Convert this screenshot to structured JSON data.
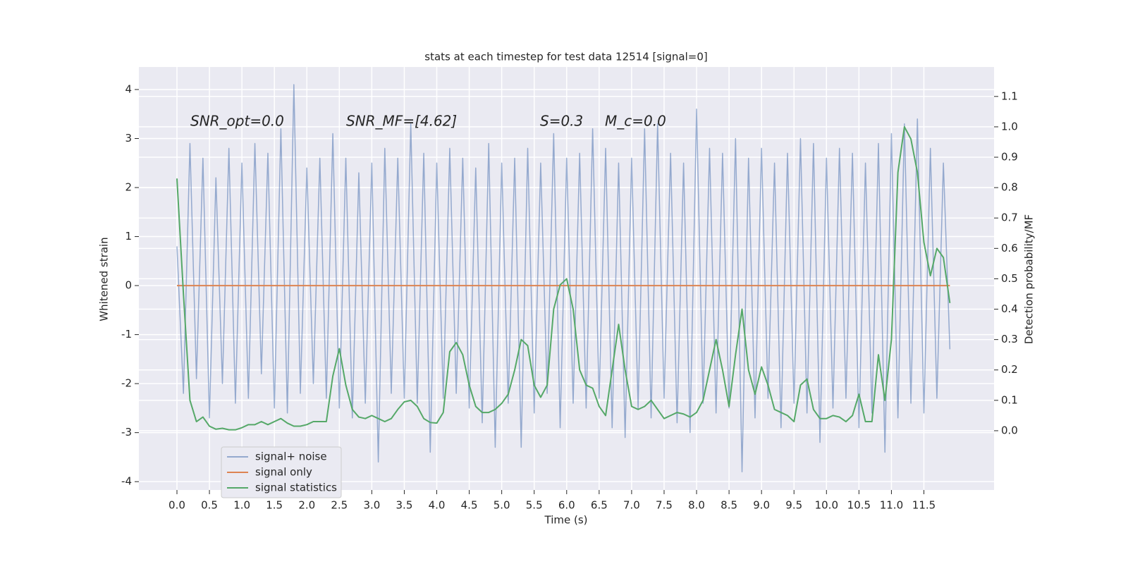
{
  "chart_data": {
    "type": "line",
    "title": "stats at each timestep for test data 12514 [signal=0]",
    "xlabel": "Time (s)",
    "ylabel": "Whitened strain",
    "y2label": "Detection probability/MF",
    "annotations": [
      "SNR_opt=0.0",
      "SNR_MF=[4.62]",
      "S=0.3",
      "M_c=0.0"
    ],
    "xlim": [
      -0.586,
      12.58
    ],
    "ylim": [
      -4.17,
      4.46
    ],
    "y2lim": [
      -0.195,
      1.197
    ],
    "xticks": [
      {
        "value": 0,
        "label": "0.0"
      },
      0.5,
      {
        "value": 1,
        "label": "1.0"
      },
      1.5,
      {
        "value": 2,
        "label": "2.0"
      },
      2.5,
      {
        "value": 3,
        "label": "3.0"
      },
      3.5,
      {
        "value": 4,
        "label": "4.0"
      },
      4.5,
      {
        "value": 5,
        "label": "5.0"
      },
      5.5,
      {
        "value": 6,
        "label": "6.0"
      },
      6.5,
      {
        "value": 7,
        "label": "7.0"
      },
      7.5,
      {
        "value": 8,
        "label": "8.0"
      },
      8.5,
      {
        "value": 9,
        "label": "9.0"
      },
      9.5,
      {
        "value": 10,
        "label": "10.0"
      },
      10.5,
      {
        "value": 11,
        "label": "11.0"
      },
      11.5
    ],
    "yticks": [
      -4,
      -3,
      -2,
      -1,
      0,
      1,
      2,
      3,
      4
    ],
    "y2ticks": [
      {
        "value": 0,
        "label": "0.0"
      },
      0.1,
      0.2,
      0.3,
      0.4,
      0.5,
      0.6,
      0.7,
      0.8,
      0.9,
      {
        "value": 1,
        "label": "1.0"
      },
      1.1
    ],
    "grid": true,
    "legend": "lower left",
    "x": [
      0,
      0.1,
      0.2,
      0.3,
      0.4,
      0.5,
      0.6,
      0.7,
      0.8,
      0.9,
      1,
      1.1,
      1.2,
      1.3,
      1.4,
      1.5,
      1.6,
      1.7,
      1.8,
      1.9,
      2,
      2.1,
      2.2,
      2.3,
      2.4,
      2.5,
      2.6,
      2.7,
      2.8,
      2.9,
      3,
      3.1,
      3.2,
      3.3,
      3.4,
      3.5,
      3.6,
      3.7,
      3.8,
      3.9,
      4,
      4.1,
      4.2,
      4.3,
      4.4,
      4.5,
      4.6,
      4.7,
      4.8,
      4.9,
      5,
      5.1,
      5.2,
      5.3,
      5.4,
      5.5,
      5.6,
      5.7,
      5.8,
      5.9,
      6,
      6.1,
      6.2,
      6.3,
      6.4,
      6.5,
      6.6,
      6.7,
      6.8,
      6.9,
      7,
      7.1,
      7.2,
      7.3,
      7.4,
      7.5,
      7.6,
      7.7,
      7.8,
      7.9,
      8,
      8.1,
      8.2,
      8.3,
      8.4,
      8.5,
      8.6,
      8.7,
      8.8,
      8.9,
      9,
      9.1,
      9.2,
      9.3,
      9.4,
      9.5,
      9.6,
      9.7,
      9.8,
      9.9,
      10,
      10.1,
      10.2,
      10.3,
      10.4,
      10.5,
      10.6,
      10.7,
      10.8,
      10.9,
      11,
      11.1,
      11.2,
      11.3,
      11.4,
      11.5,
      11.6,
      11.7,
      11.8,
      11.9
    ],
    "series": [
      {
        "name": "signal+ noise",
        "color": "#4c72b0",
        "values": [
          0.8,
          -2.2,
          2.9,
          -1.9,
          2.6,
          -2.7,
          2.2,
          -2.0,
          2.8,
          -2.4,
          2.5,
          -2.3,
          2.9,
          -1.8,
          2.7,
          -2.5,
          3.2,
          -2.6,
          4.1,
          -2.2,
          2.4,
          -2.0,
          2.6,
          -2.3,
          3.1,
          -2.5,
          2.6,
          -2.7,
          2.3,
          -2.4,
          2.5,
          -3.6,
          2.8,
          -2.2,
          2.6,
          -2.3,
          3.3,
          -2.4,
          2.7,
          -3.4,
          2.5,
          -2.3,
          2.8,
          -2.2,
          2.6,
          -2.5,
          2.4,
          -2.8,
          2.9,
          -3.3,
          2.5,
          -2.4,
          2.6,
          -3.3,
          2.8,
          -2.6,
          2.5,
          -2.2,
          3.1,
          -2.9,
          2.6,
          -2.4,
          2.7,
          -2.5,
          3.2,
          -2.3,
          2.8,
          -2.9,
          2.5,
          -3.1,
          2.6,
          -2.5,
          3.2,
          -2.7,
          3.3,
          -2.3,
          2.7,
          -2.8,
          2.5,
          -3.0,
          3.6,
          -2.4,
          2.8,
          -2.6,
          2.7,
          -2.5,
          3.0,
          -3.8,
          2.6,
          -2.7,
          2.8,
          -2.3,
          2.5,
          -2.9,
          2.7,
          -2.4,
          3.0,
          -2.6,
          2.9,
          -3.2,
          2.6,
          -2.5,
          2.8,
          -2.3,
          2.7,
          -2.9,
          2.5,
          -2.6,
          2.9,
          -3.4,
          3.1,
          -2.7,
          3.3,
          -2.4,
          3.4,
          -2.6,
          2.8,
          -2.3,
          2.5,
          -1.3
        ]
      },
      {
        "name": "signal only",
        "color": "#dd8452",
        "values": [
          0,
          0,
          0,
          0,
          0,
          0,
          0,
          0,
          0,
          0,
          0,
          0,
          0,
          0,
          0,
          0,
          0,
          0,
          0,
          0,
          0,
          0,
          0,
          0,
          0,
          0,
          0,
          0,
          0,
          0,
          0,
          0,
          0,
          0,
          0,
          0,
          0,
          0,
          0,
          0,
          0,
          0,
          0,
          0,
          0,
          0,
          0,
          0,
          0,
          0,
          0,
          0,
          0,
          0,
          0,
          0,
          0,
          0,
          0,
          0,
          0,
          0,
          0,
          0,
          0,
          0,
          0,
          0,
          0,
          0,
          0,
          0,
          0,
          0,
          0,
          0,
          0,
          0,
          0,
          0,
          0,
          0,
          0,
          0,
          0,
          0,
          0,
          0,
          0,
          0,
          0,
          0,
          0,
          0,
          0,
          0,
          0,
          0,
          0,
          0,
          0,
          0,
          0,
          0,
          0,
          0,
          0,
          0,
          0,
          0,
          0,
          0,
          0,
          0,
          0,
          0,
          0,
          0,
          0,
          0
        ]
      },
      {
        "name": "signal statistics",
        "color": "#55a868",
        "axis": "y2",
        "values": [
          0.83,
          0.45,
          0.1,
          0.03,
          0.045,
          0.015,
          0.005,
          0.008,
          0.003,
          0.003,
          0.01,
          0.02,
          0.02,
          0.03,
          0.02,
          0.03,
          0.04,
          0.025,
          0.015,
          0.015,
          0.02,
          0.03,
          0.03,
          0.03,
          0.18,
          0.27,
          0.15,
          0.07,
          0.045,
          0.04,
          0.05,
          0.04,
          0.03,
          0.04,
          0.07,
          0.095,
          0.1,
          0.08,
          0.04,
          0.027,
          0.025,
          0.06,
          0.26,
          0.29,
          0.25,
          0.15,
          0.08,
          0.06,
          0.06,
          0.07,
          0.09,
          0.12,
          0.2,
          0.3,
          0.28,
          0.15,
          0.11,
          0.15,
          0.4,
          0.48,
          0.5,
          0.4,
          0.2,
          0.15,
          0.14,
          0.08,
          0.05,
          0.2,
          0.35,
          0.2,
          0.08,
          0.07,
          0.08,
          0.1,
          0.07,
          0.04,
          0.05,
          0.06,
          0.055,
          0.045,
          0.06,
          0.1,
          0.2,
          0.3,
          0.2,
          0.08,
          0.25,
          0.4,
          0.2,
          0.12,
          0.21,
          0.15,
          0.07,
          0.06,
          0.05,
          0.03,
          0.15,
          0.17,
          0.07,
          0.04,
          0.04,
          0.05,
          0.045,
          0.03,
          0.05,
          0.12,
          0.03,
          0.03,
          0.25,
          0.1,
          0.3,
          0.85,
          1.0,
          0.96,
          0.85,
          0.62,
          0.51,
          0.6,
          0.57,
          0.42
        ]
      }
    ]
  }
}
